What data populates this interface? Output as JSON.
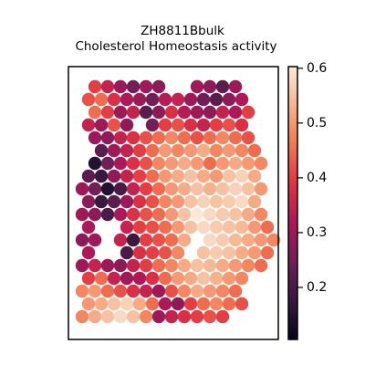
{
  "chart_data": {
    "type": "scatter",
    "title": "ZH8811Bbulk",
    "subtitle": "Cholesterol Homeostasis activity",
    "xlim": [
      0,
      230
    ],
    "ylim": [
      0,
      299
    ],
    "clim": [
      0.105,
      0.603
    ],
    "cticks": [
      0.2,
      0.3,
      0.4,
      0.5,
      0.6
    ],
    "colormap": [
      "#03051a",
      "#36193e",
      "#701f57",
      "#ad1759",
      "#e13342",
      "#f37651",
      "#f6b48f",
      "#faebdd"
    ],
    "x": [
      29,
      43,
      57,
      71,
      85,
      99,
      141,
      155,
      169,
      183,
      22,
      36,
      50,
      64,
      78,
      92,
      106,
      120,
      134,
      148,
      162,
      176,
      190,
      29,
      43,
      57,
      71,
      85,
      99,
      113,
      127,
      141,
      155,
      169,
      183,
      197,
      22,
      36,
      50,
      64,
      92,
      106,
      120,
      134,
      148,
      162,
      176,
      190,
      29,
      43,
      57,
      71,
      85,
      99,
      113,
      127,
      141,
      155,
      169,
      183,
      197,
      36,
      50,
      64,
      78,
      92,
      106,
      120,
      134,
      148,
      162,
      176,
      190,
      204,
      29,
      43,
      57,
      71,
      85,
      99,
      113,
      127,
      141,
      155,
      169,
      183,
      197,
      211,
      22,
      36,
      50,
      64,
      78,
      92,
      106,
      120,
      134,
      148,
      162,
      176,
      190,
      204,
      15,
      29,
      43,
      57,
      71,
      85,
      99,
      113,
      127,
      141,
      155,
      169,
      183,
      197,
      211,
      22,
      36,
      50,
      64,
      78,
      92,
      106,
      120,
      134,
      148,
      162,
      176,
      190,
      204,
      15,
      29,
      43,
      57,
      71,
      85,
      99,
      113,
      127,
      141,
      155,
      169,
      183,
      197,
      211,
      22,
      64,
      78,
      92,
      106,
      120,
      134,
      148,
      162,
      176,
      190,
      204,
      218,
      15,
      29,
      57,
      71,
      85,
      99,
      113,
      127,
      155,
      169,
      183,
      197,
      211,
      225,
      22,
      64,
      78,
      92,
      106,
      120,
      148,
      162,
      176,
      190,
      204,
      218,
      15,
      29,
      43,
      57,
      71,
      85,
      99,
      113,
      127,
      141,
      155,
      169,
      183,
      197,
      211,
      22,
      36,
      50,
      64,
      78,
      92,
      106,
      120,
      134,
      148,
      162,
      176,
      190,
      15,
      29,
      43,
      57,
      71,
      85,
      99,
      113,
      127,
      141,
      155,
      169,
      183,
      22,
      36,
      50,
      64,
      78,
      92,
      106,
      120,
      134,
      148,
      162,
      176,
      190,
      15,
      29,
      43,
      57,
      71,
      85,
      99,
      113,
      127,
      141,
      155,
      169
    ],
    "y": [
      277,
      277,
      277,
      277,
      277,
      277,
      277,
      277,
      277,
      277,
      263,
      263,
      263,
      263,
      263,
      263,
      263,
      263,
      263,
      263,
      263,
      263,
      263,
      249,
      249,
      249,
      249,
      249,
      249,
      249,
      249,
      249,
      249,
      249,
      249,
      249,
      235,
      235,
      235,
      235,
      235,
      235,
      235,
      235,
      235,
      235,
      235,
      235,
      221,
      221,
      221,
      221,
      221,
      221,
      221,
      221,
      221,
      221,
      221,
      221,
      221,
      207,
      207,
      207,
      207,
      207,
      207,
      207,
      207,
      207,
      207,
      207,
      207,
      207,
      193,
      193,
      193,
      193,
      193,
      193,
      193,
      193,
      193,
      193,
      193,
      193,
      193,
      193,
      179,
      179,
      179,
      179,
      179,
      179,
      179,
      179,
      179,
      179,
      179,
      179,
      179,
      179,
      165,
      165,
      165,
      165,
      165,
      165,
      165,
      165,
      165,
      165,
      165,
      165,
      165,
      165,
      165,
      151,
      151,
      151,
      151,
      151,
      151,
      151,
      151,
      151,
      151,
      151,
      151,
      151,
      151,
      137,
      137,
      137,
      137,
      137,
      137,
      137,
      137,
      137,
      137,
      137,
      137,
      137,
      137,
      137,
      123,
      123,
      123,
      123,
      123,
      123,
      123,
      123,
      123,
      123,
      123,
      123,
      123,
      109,
      109,
      109,
      109,
      109,
      109,
      109,
      109,
      109,
      109,
      109,
      109,
      109,
      109,
      95,
      95,
      95,
      95,
      95,
      95,
      95,
      95,
      95,
      95,
      95,
      95,
      81,
      81,
      81,
      81,
      81,
      81,
      81,
      81,
      81,
      81,
      81,
      81,
      81,
      81,
      81,
      67,
      67,
      67,
      67,
      67,
      67,
      67,
      67,
      67,
      67,
      67,
      67,
      67,
      53,
      53,
      53,
      53,
      53,
      53,
      53,
      53,
      53,
      53,
      53,
      53,
      53,
      39,
      39,
      39,
      39,
      39,
      39,
      39,
      39,
      39,
      39,
      39,
      39,
      39,
      25,
      25,
      25,
      25,
      25,
      25,
      25,
      25,
      25,
      25,
      25,
      25
    ],
    "values": [
      0.4,
      0.35,
      0.3,
      0.25,
      0.3,
      0.28,
      0.3,
      0.28,
      0.22,
      0.3,
      0.42,
      0.45,
      0.38,
      0.32,
      0.3,
      0.25,
      0.33,
      0.35,
      0.3,
      0.25,
      0.22,
      0.28,
      0.32,
      0.45,
      0.4,
      0.3,
      0.35,
      0.22,
      0.28,
      0.38,
      0.33,
      0.3,
      0.28,
      0.35,
      0.32,
      0.4,
      0.35,
      0.3,
      0.42,
      0.28,
      0.25,
      0.4,
      0.42,
      0.38,
      0.35,
      0.4,
      0.42,
      0.38,
      0.3,
      0.28,
      0.35,
      0.38,
      0.42,
      0.45,
      0.48,
      0.45,
      0.42,
      0.45,
      0.48,
      0.45,
      0.42,
      0.22,
      0.3,
      0.35,
      0.4,
      0.45,
      0.5,
      0.48,
      0.5,
      0.52,
      0.48,
      0.5,
      0.48,
      0.45,
      0.15,
      0.25,
      0.32,
      0.38,
      0.42,
      0.48,
      0.5,
      0.52,
      0.5,
      0.45,
      0.5,
      0.52,
      0.5,
      0.48,
      0.22,
      0.18,
      0.28,
      0.35,
      0.4,
      0.45,
      0.5,
      0.52,
      0.55,
      0.52,
      0.5,
      0.55,
      0.57,
      0.52,
      0.3,
      0.25,
      0.15,
      0.2,
      0.35,
      0.4,
      0.45,
      0.5,
      0.52,
      0.55,
      0.53,
      0.55,
      0.57,
      0.55,
      0.5,
      0.28,
      0.18,
      0.22,
      0.3,
      0.38,
      0.42,
      0.48,
      0.5,
      0.55,
      0.57,
      0.55,
      0.56,
      0.58,
      0.52,
      0.3,
      0.28,
      0.2,
      0.32,
      0.38,
      0.42,
      0.45,
      0.5,
      0.55,
      0.6,
      0.58,
      0.56,
      0.55,
      0.52,
      0.48,
      0.32,
      0.35,
      0.4,
      0.42,
      0.45,
      0.5,
      0.55,
      0.58,
      0.56,
      0.55,
      0.54,
      0.5,
      0.45,
      0.28,
      0.3,
      0.35,
      0.18,
      0.4,
      0.42,
      0.45,
      0.52,
      0.58,
      0.56,
      0.54,
      0.52,
      0.5,
      0.48,
      0.32,
      0.2,
      0.38,
      0.4,
      0.42,
      0.48,
      0.55,
      0.56,
      0.55,
      0.52,
      0.5,
      0.45,
      0.3,
      0.35,
      0.3,
      0.28,
      0.35,
      0.4,
      0.45,
      0.48,
      0.52,
      0.55,
      0.54,
      0.52,
      0.5,
      0.48,
      0.45,
      0.4,
      0.45,
      0.35,
      0.3,
      0.32,
      0.38,
      0.45,
      0.5,
      0.52,
      0.55,
      0.53,
      0.5,
      0.48,
      0.48,
      0.5,
      0.45,
      0.42,
      0.38,
      0.35,
      0.3,
      0.42,
      0.48,
      0.52,
      0.5,
      0.48,
      0.45,
      0.5,
      0.52,
      0.55,
      0.57,
      0.52,
      0.45,
      0.32,
      0.28,
      0.4,
      0.45,
      0.48,
      0.45,
      0.42,
      0.48,
      0.52,
      0.55,
      0.58,
      0.55,
      0.48,
      0.3,
      0.35,
      0.38,
      0.4,
      0.42,
      0.4
    ]
  }
}
